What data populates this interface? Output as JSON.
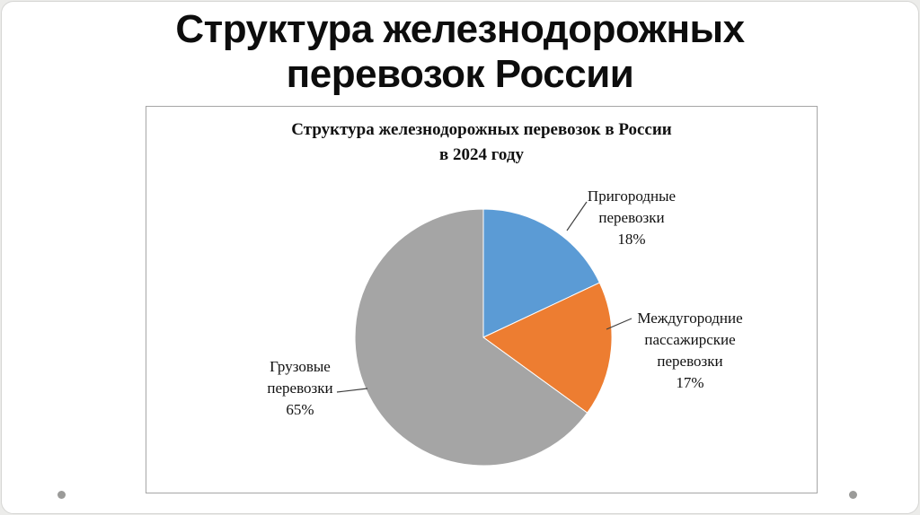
{
  "slide": {
    "title_line1": "Структура железнодорожных",
    "title_line2": "перевозок России"
  },
  "chart_data": {
    "type": "pie",
    "title": "Структура железнодорожных перевозок в России в 2024 году",
    "title_line1": "Структура железнодорожных перевозок в России",
    "title_line2": "в 2024 году",
    "start_angle_deg": -90,
    "direction": "clockwise",
    "legend_position": "none (data labels with leader lines)",
    "slices": [
      {
        "label": "Пригородные перевозки",
        "value": 18,
        "percent_label": "18%",
        "color": "#5B9BD5",
        "label_lines": [
          "Пригородные",
          "перевозки",
          "18%"
        ]
      },
      {
        "label": "Междугородние пассажирские перевозки",
        "value": 17,
        "percent_label": "17%",
        "color": "#ED7D31",
        "label_lines": [
          "Междугородние",
          "пассажирские",
          "перевозки",
          "17%"
        ]
      },
      {
        "label": "Грузовые перевозки",
        "value": 65,
        "percent_label": "65%",
        "color": "#A5A5A5",
        "label_lines": [
          "Грузовые",
          "перевозки",
          "65%"
        ]
      }
    ]
  }
}
